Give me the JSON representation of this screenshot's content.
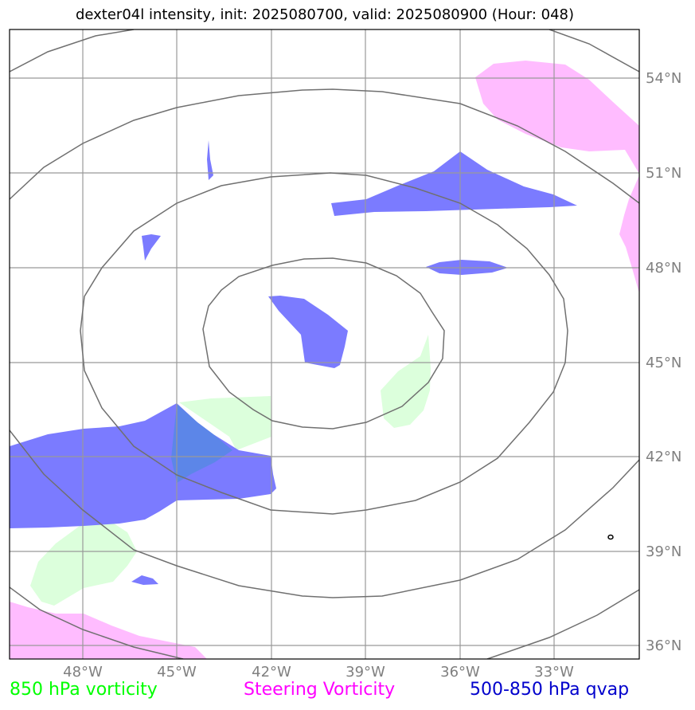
{
  "title": "dexter04l intensity, init: 2025080700, valid: 2025080900 (Hour: 048)",
  "axes": {
    "lon_ticks": [
      "48°W",
      "45°W",
      "42°W",
      "39°W",
      "36°W",
      "33°W"
    ],
    "lat_ticks": [
      "54°N",
      "51°N",
      "48°N",
      "45°N",
      "42°N",
      "39°N",
      "36°N"
    ]
  },
  "legend": {
    "green": {
      "label": "850 hPa vorticity",
      "color": "#00ff00"
    },
    "magenta": {
      "label": "Steering Vorticity",
      "color": "#ff00ff"
    },
    "blue": {
      "label": "500-850 hPa qvap",
      "color": "#0000cc"
    }
  },
  "colors": {
    "qvap_fill": "#7b7bff",
    "steering_fill": "#ffbcff",
    "vort850_fill": "#dcffdc",
    "contour": "#707070",
    "gridline": "#999999"
  }
}
